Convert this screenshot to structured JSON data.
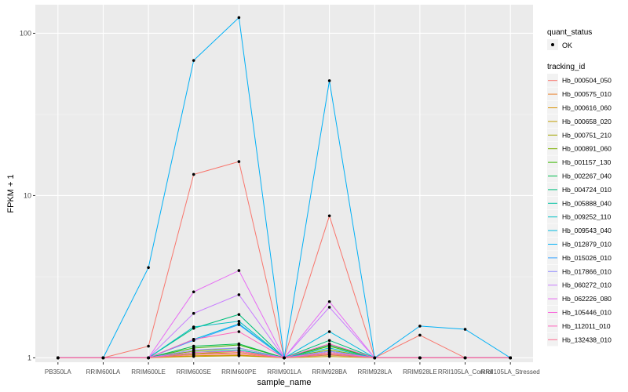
{
  "chart_data": {
    "type": "line",
    "xlabel": "sample_name",
    "ylabel": "FPKM + 1",
    "y_scale": "log10",
    "ylim": [
      0.94,
      150
    ],
    "y_ticks": [
      1,
      10,
      100
    ],
    "y_tick_labels": [
      "1",
      "10",
      "100"
    ],
    "grid": true,
    "background": "#EBEBEB",
    "categories": [
      "PB350LA",
      "RRIM600LA",
      "RRIM600LE",
      "RRIM600SE",
      "RRIM600PE",
      "RRIM901LA",
      "RRIM928BA",
      "RRIM928LA",
      "RRIM928LE",
      "RRII105LA_Control",
      "RRII105LA_Stressed"
    ],
    "legend_position": "right",
    "shape_legend": {
      "title": "quant_status",
      "items": [
        "OK"
      ]
    },
    "color_legend_title": "tracking_id",
    "series": [
      {
        "name": "Hb_000504_050",
        "color": "#F8766D",
        "values": [
          1,
          1,
          1.18,
          13.5,
          16.2,
          1,
          7.5,
          1,
          1.38,
          1,
          1
        ]
      },
      {
        "name": "Hb_000575_010",
        "color": "#EA8331",
        "values": [
          1,
          1,
          1,
          1.05,
          1.08,
          1,
          1.06,
          1,
          1,
          1,
          1
        ]
      },
      {
        "name": "Hb_000616_060",
        "color": "#D89000",
        "values": [
          1,
          1,
          1,
          1.03,
          1.04,
          1,
          1.04,
          1,
          1,
          1,
          1
        ]
      },
      {
        "name": "Hb_000658_020",
        "color": "#C09B00",
        "values": [
          1,
          1,
          1,
          1.02,
          1.03,
          1,
          1.02,
          1,
          1,
          1,
          1
        ]
      },
      {
        "name": "Hb_000751_210",
        "color": "#A3A500",
        "values": [
          1,
          1,
          1,
          1.06,
          1.1,
          1,
          1.08,
          1,
          1,
          1,
          1
        ]
      },
      {
        "name": "Hb_000891_060",
        "color": "#7CAE00",
        "values": [
          1,
          1,
          1,
          1.1,
          1.15,
          1,
          1.12,
          1,
          1,
          1,
          1
        ]
      },
      {
        "name": "Hb_001157_130",
        "color": "#39B600",
        "values": [
          1,
          1,
          1,
          1.15,
          1.2,
          1,
          1.18,
          1,
          1,
          1,
          1
        ]
      },
      {
        "name": "Hb_002267_040",
        "color": "#00BB4E",
        "values": [
          1,
          1,
          1,
          1.18,
          1.22,
          1,
          1.2,
          1,
          1,
          1,
          1
        ]
      },
      {
        "name": "Hb_004724_010",
        "color": "#00BF7D",
        "values": [
          1,
          1,
          1,
          1.52,
          1.85,
          1,
          1.28,
          1,
          1,
          1,
          1
        ]
      },
      {
        "name": "Hb_005888_040",
        "color": "#00C1A3",
        "values": [
          1,
          1,
          1,
          1.08,
          1.12,
          1,
          1.1,
          1,
          1,
          1,
          1
        ]
      },
      {
        "name": "Hb_009252_110",
        "color": "#00BFC4",
        "values": [
          1,
          1,
          1,
          1.55,
          1.68,
          1,
          1.15,
          1,
          1,
          1,
          1
        ]
      },
      {
        "name": "Hb_009543_040",
        "color": "#00BAE0",
        "values": [
          1,
          1,
          1,
          1.3,
          1.62,
          1,
          1.45,
          1,
          1,
          1,
          1
        ]
      },
      {
        "name": "Hb_012879_010",
        "color": "#00B0F6",
        "values": [
          1,
          1,
          3.6,
          68,
          125,
          1,
          51,
          1,
          1.57,
          1.5,
          1
        ]
      },
      {
        "name": "Hb_015026_010",
        "color": "#35A2FF",
        "values": [
          1,
          1,
          1,
          1.28,
          1.6,
          1,
          1.05,
          1,
          1,
          1,
          1
        ]
      },
      {
        "name": "Hb_017866_010",
        "color": "#9590FF",
        "values": [
          1,
          1,
          1,
          1.12,
          1.15,
          1,
          1.1,
          1,
          1,
          1,
          1
        ]
      },
      {
        "name": "Hb_060272_010",
        "color": "#C77CFF",
        "values": [
          1,
          1,
          1,
          1.88,
          2.45,
          1,
          2.05,
          1,
          1,
          1,
          1
        ]
      },
      {
        "name": "Hb_062226_080",
        "color": "#E76BF3",
        "values": [
          1,
          1,
          1,
          2.55,
          3.45,
          1,
          2.22,
          1,
          1,
          1,
          1
        ]
      },
      {
        "name": "Hb_105446_010",
        "color": "#FA62DB",
        "values": [
          1,
          1,
          1,
          1.08,
          1.1,
          1,
          1.08,
          1,
          1,
          1,
          1
        ]
      },
      {
        "name": "Hb_112011_010",
        "color": "#FF62BC",
        "values": [
          1,
          1,
          1,
          1.3,
          1.45,
          1,
          1.22,
          1,
          1,
          1,
          1
        ]
      },
      {
        "name": "Hb_132438_010",
        "color": "#FF6C91",
        "values": [
          1,
          1,
          1,
          1.05,
          1.06,
          1,
          1.05,
          1,
          1,
          1,
          1
        ]
      }
    ]
  }
}
